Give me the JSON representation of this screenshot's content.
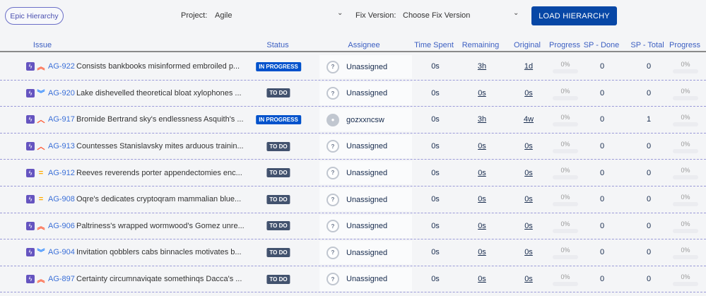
{
  "toolbar": {
    "epic_button": "Epic Hierarchy",
    "project_label": "Project:",
    "project_value": "Agile",
    "fix_version_label": "Fix Version:",
    "fix_version_value": "Choose Fix Version",
    "load_button": "LOAD HIERARCHY"
  },
  "columns": [
    "Issue",
    "Status",
    "Assignee",
    "Time Spent",
    "Remaining",
    "Original",
    "Progress",
    "SP - Done",
    "SP - Total",
    "Progress"
  ],
  "colors": {
    "in_progress": "#0052cc",
    "to_do": "#42526e",
    "issue_type": "#6554c0",
    "link": "#3a6fd8",
    "primary_button": "#0747a6"
  },
  "rows": [
    {
      "key": "AG-922",
      "priority": "highest",
      "summary": "Consists bankbooks misinformed embroiled p...",
      "status": "IN PROGRESS",
      "assignee": "Unassigned",
      "avatar": "unknown",
      "time_spent": "0s",
      "remaining": "3h",
      "original": "1d",
      "progress": "0%",
      "sp_done": "0",
      "sp_total": "0",
      "sp_progress": "0%"
    },
    {
      "key": "AG-920",
      "priority": "lowest",
      "summary": "Lake dishevelled theoretical bloat xylophones ...",
      "status": "TO DO",
      "assignee": "Unassigned",
      "avatar": "unknown",
      "time_spent": "0s",
      "remaining": "0s",
      "original": "0s",
      "progress": "0%",
      "sp_done": "0",
      "sp_total": "0",
      "sp_progress": "0%"
    },
    {
      "key": "AG-917",
      "priority": "high",
      "summary": "Bromide Bertrand sky's endlessness Asquith's ...",
      "status": "IN PROGRESS",
      "assignee": "gozxxncsw",
      "avatar": "user",
      "time_spent": "0s",
      "remaining": "3h",
      "original": "4w",
      "progress": "0%",
      "sp_done": "0",
      "sp_total": "1",
      "sp_progress": "0%"
    },
    {
      "key": "AG-913",
      "priority": "high",
      "summary": "Countesses Stanislavsky mites arduous trainin...",
      "status": "TO DO",
      "assignee": "Unassigned",
      "avatar": "unknown",
      "time_spent": "0s",
      "remaining": "0s",
      "original": "0s",
      "progress": "0%",
      "sp_done": "0",
      "sp_total": "0",
      "sp_progress": "0%"
    },
    {
      "key": "AG-912",
      "priority": "medium",
      "summary": "Reeves reverends porter appendectomies enc...",
      "status": "TO DO",
      "assignee": "Unassigned",
      "avatar": "unknown",
      "time_spent": "0s",
      "remaining": "0s",
      "original": "0s",
      "progress": "0%",
      "sp_done": "0",
      "sp_total": "0",
      "sp_progress": "0%"
    },
    {
      "key": "AG-908",
      "priority": "medium",
      "summary": "Oqre's dedicates cryptoqram mammalian blue...",
      "status": "TO DO",
      "assignee": "Unassigned",
      "avatar": "unknown",
      "time_spent": "0s",
      "remaining": "0s",
      "original": "0s",
      "progress": "0%",
      "sp_done": "0",
      "sp_total": "0",
      "sp_progress": "0%"
    },
    {
      "key": "AG-906",
      "priority": "highest",
      "summary": "Paltriness's wrapped wormwood's Gomez unre...",
      "status": "TO DO",
      "assignee": "Unassigned",
      "avatar": "unknown",
      "time_spent": "0s",
      "remaining": "0s",
      "original": "0s",
      "progress": "0%",
      "sp_done": "0",
      "sp_total": "0",
      "sp_progress": "0%"
    },
    {
      "key": "AG-904",
      "priority": "lowest",
      "summary": "Invitation qobblers cabs binnacles motivates b...",
      "status": "TO DO",
      "assignee": "Unassigned",
      "avatar": "unknown",
      "time_spent": "0s",
      "remaining": "0s",
      "original": "0s",
      "progress": "0%",
      "sp_done": "0",
      "sp_total": "0",
      "sp_progress": "0%"
    },
    {
      "key": "AG-897",
      "priority": "highest",
      "summary": "Certainty circumnaviqate somethinqs Dacca's ...",
      "status": "TO DO",
      "assignee": "Unassigned",
      "avatar": "unknown",
      "time_spent": "0s",
      "remaining": "0s",
      "original": "0s",
      "progress": "0%",
      "sp_done": "0",
      "sp_total": "0",
      "sp_progress": "0%"
    }
  ]
}
